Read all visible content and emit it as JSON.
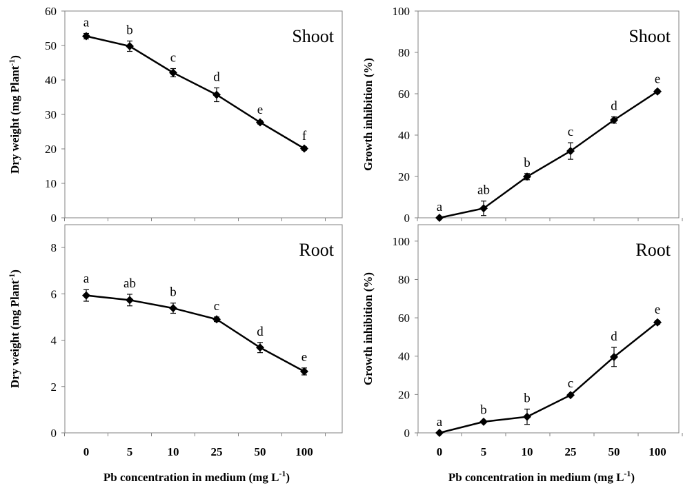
{
  "colors": {
    "line": "#000000",
    "frame": "#808080",
    "background": "#ffffff"
  },
  "chart_data": [
    {
      "type": "line",
      "title": "Shoot",
      "ylabel": "Dry weight (mg Plant-1)",
      "ylabel_main": "Dry weight (mg Plant",
      "ylabel_sup": "-1",
      "ylabel_end": ")",
      "xlabel": "",
      "categories": [
        "0",
        "5",
        "10",
        "25",
        "50",
        "100"
      ],
      "ylim": [
        0,
        60
      ],
      "yticks": [
        "0",
        "10",
        "20",
        "30",
        "40",
        "50",
        "60"
      ],
      "series": [
        {
          "values": [
            52.7,
            49.8,
            42.1,
            35.7,
            27.7,
            20.1
          ],
          "errors": [
            0.8,
            1.5,
            1.2,
            2.0,
            0.5,
            0.5
          ]
        }
      ],
      "letters": [
        "a",
        "b",
        "c",
        "d",
        "e",
        "f"
      ],
      "grid": false
    },
    {
      "type": "line",
      "title": "Shoot",
      "ylabel": "Growth inhibition (%)",
      "ylabel_main": "Growth inhibition (%)",
      "ylabel_sup": "",
      "ylabel_end": "",
      "xlabel": "",
      "categories": [
        "0",
        "5",
        "10",
        "25",
        "50",
        "100"
      ],
      "ylim": [
        0,
        100
      ],
      "yticks": [
        "0",
        "20",
        "40",
        "60",
        "80",
        "100"
      ],
      "series": [
        {
          "values": [
            0,
            4.6,
            19.9,
            32.3,
            47.3,
            61.1
          ],
          "errors": [
            0,
            3.5,
            1.5,
            4.0,
            1.5,
            0.8
          ]
        }
      ],
      "letters": [
        "a",
        "ab",
        "b",
        "c",
        "d",
        "e"
      ],
      "grid": false
    },
    {
      "type": "line",
      "title": "Root",
      "ylabel": "Dry weight (mg Plant-1)",
      "ylabel_main": "Dry weight (mg Plant",
      "ylabel_sup": "-1",
      "ylabel_end": ")",
      "xlabel": "Pb concentration in medium (mg L-1)",
      "xlabel_main": "Pb concentration in medium (mg L",
      "xlabel_sup": "-1",
      "xlabel_end": ")",
      "categories": [
        "0",
        "5",
        "10",
        "25",
        "50",
        "100"
      ],
      "ylim": [
        0,
        8
      ],
      "yticks": [
        "0",
        "2",
        "4",
        "6",
        "8"
      ],
      "series": [
        {
          "values": [
            5.93,
            5.73,
            5.38,
            4.9,
            3.68,
            2.65
          ],
          "errors": [
            0.25,
            0.25,
            0.22,
            0.1,
            0.22,
            0.15
          ]
        }
      ],
      "letters": [
        "a",
        "ab",
        "b",
        "c",
        "d",
        "e"
      ],
      "grid": false
    },
    {
      "type": "line",
      "title": "Root",
      "ylabel": "Growth inhibition (%)",
      "ylabel_main": "Growth inhibition (%)",
      "ylabel_sup": "",
      "ylabel_end": "",
      "xlabel": "Pb concentration in medium (mg L-1)",
      "xlabel_main": "Pb concentration in medium (mg L",
      "xlabel_sup": "-1",
      "xlabel_end": ")",
      "categories": [
        "0",
        "5",
        "10",
        "25",
        "50",
        "100"
      ],
      "ylim": [
        0,
        110
      ],
      "yticks": [
        "0",
        "20",
        "40",
        "60",
        "80",
        "100"
      ],
      "series": [
        {
          "values": [
            0,
            5.8,
            8.4,
            19.7,
            39.6,
            57.6
          ],
          "errors": [
            0,
            0.5,
            4.0,
            0.5,
            5.0,
            1.0
          ]
        }
      ],
      "letters": [
        "a",
        "b",
        "b",
        "c",
        "d",
        "e"
      ],
      "grid": false
    }
  ]
}
